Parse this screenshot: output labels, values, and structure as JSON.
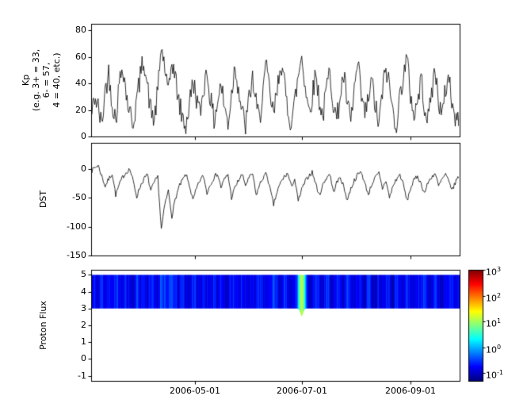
{
  "figure": {
    "background": "#ffffff"
  },
  "panels": {
    "kp": {
      "ylabel_lines": [
        "Kp",
        "(e.g. 3+ = 33,",
        "6- = 57,",
        "4 = 40, etc.)"
      ],
      "yticks": [
        "80",
        "60",
        "40",
        "20",
        "0"
      ]
    },
    "dst": {
      "ylabel": "DST",
      "yticks": [
        "0",
        "-50",
        "-100",
        "-150"
      ]
    },
    "flux": {
      "ylabel": "Proton Flux",
      "yticks": [
        "5",
        "4",
        "3",
        "2",
        "1",
        "0",
        "-1"
      ]
    }
  },
  "xaxis": {
    "ticks": [
      "2006-05-01",
      "2006-07-01",
      "2006-09-01"
    ]
  },
  "colorbar": {
    "ticks": [
      {
        "base": "10",
        "exp": "3"
      },
      {
        "base": "10",
        "exp": "2"
      },
      {
        "base": "10",
        "exp": "1"
      },
      {
        "base": "10",
        "exp": "0"
      },
      {
        "base": "10",
        "exp": "-1"
      }
    ]
  },
  "chart_data": [
    {
      "type": "line",
      "name": "Kp",
      "ylabel": "Kp (e.g. 3+ = 33, 6- = 57, 4 = 40, etc.)",
      "ylim": [
        0,
        85
      ],
      "yticks": [
        0,
        20,
        40,
        60,
        80
      ],
      "x_span_days": 210,
      "x_step_days": 2,
      "xticks": [
        {
          "label": "2006-05-01",
          "day": 59
        },
        {
          "label": "2006-07-01",
          "day": 120
        },
        {
          "label": "2006-09-01",
          "day": 182
        }
      ],
      "line_color": "#000000",
      "noise_amp": 9,
      "noise_seed": 42,
      "value_min": 0,
      "values": [
        14,
        30,
        22,
        8,
        35,
        48,
        26,
        12,
        40,
        55,
        32,
        18,
        10,
        28,
        45,
        60,
        38,
        20,
        12,
        34,
        68,
        52,
        30,
        58,
        44,
        26,
        14,
        8,
        24,
        42,
        30,
        16,
        36,
        50,
        28,
        12,
        26,
        40,
        22,
        10,
        32,
        55,
        36,
        18,
        8,
        28,
        44,
        24,
        12,
        38,
        52,
        30,
        16,
        34,
        58,
        40,
        22,
        10,
        26,
        45,
        62,
        38,
        20,
        30,
        48,
        28,
        14,
        35,
        50,
        26,
        12,
        32,
        46,
        24,
        10,
        36,
        54,
        30,
        16,
        28,
        42,
        22,
        8,
        34,
        52,
        38,
        18,
        10,
        30,
        48,
        58,
        32,
        16,
        26,
        44,
        24,
        12,
        34,
        50,
        28,
        14,
        36,
        46,
        22,
        10,
        18
      ]
    },
    {
      "type": "line",
      "name": "DST",
      "ylabel": "DST",
      "ylim": [
        -150,
        45
      ],
      "yticks": [
        0,
        -50,
        -100,
        -150
      ],
      "x_span_days": 210,
      "x_step_days": 2,
      "line_color": "#000000",
      "noise_amp": 4,
      "noise_seed": 7,
      "values": [
        -5,
        2,
        6,
        -12,
        -30,
        -18,
        -8,
        -45,
        -28,
        -14,
        -6,
        0,
        -22,
        -48,
        -30,
        -18,
        -10,
        -38,
        -24,
        -14,
        -105,
        -62,
        -38,
        -82,
        -52,
        -32,
        -20,
        -10,
        -28,
        -55,
        -35,
        -20,
        -12,
        -42,
        -26,
        -15,
        -8,
        -32,
        -18,
        -10,
        -50,
        -32,
        -20,
        -10,
        -28,
        -16,
        -8,
        -46,
        -28,
        -15,
        -8,
        -36,
        -62,
        -40,
        -24,
        -14,
        -8,
        -30,
        -18,
        -56,
        -36,
        -22,
        -12,
        -6,
        -26,
        -46,
        -28,
        -16,
        -8,
        -40,
        -24,
        -14,
        -32,
        -54,
        -34,
        -20,
        -10,
        -5,
        -26,
        -44,
        -26,
        -15,
        -8,
        -34,
        -20,
        -50,
        -30,
        -18,
        -10,
        -28,
        -56,
        -34,
        -20,
        -12,
        -26,
        -42,
        -24,
        -14,
        -8,
        -30,
        -18,
        -10,
        -24,
        -36,
        -20,
        -12
      ]
    },
    {
      "type": "heatmap",
      "name": "Proton Flux",
      "ylabel": "Proton Flux",
      "ylim": [
        -1.3,
        5.3
      ],
      "yticks": [
        -1,
        0,
        1,
        2,
        3,
        4,
        5
      ],
      "x_span_days": 210,
      "x_step_days": 2,
      "band_y": [
        3,
        5
      ],
      "colormap": "jet",
      "color_scale": "log10",
      "clim_log10": [
        -1.3,
        3
      ],
      "colorbar_tick_log10": [
        3,
        2,
        1,
        0,
        -1
      ],
      "colorbar_tick_values": [
        1000,
        100,
        10,
        1,
        0.1
      ],
      "noise_seed": 11,
      "event": {
        "day": 120,
        "peak_flux": 12,
        "width_days": 0.9,
        "dip_below_band": 0.45
      },
      "base_values": [
        0.12,
        0.2,
        0.1,
        0.28,
        0.15,
        0.22,
        0.1,
        0.32,
        0.18,
        0.12,
        0.25,
        0.14,
        0.1,
        0.3,
        0.16,
        0.22,
        0.12,
        0.28,
        0.15,
        0.1,
        0.45,
        0.3,
        0.18,
        0.35,
        0.2,
        0.12,
        0.26,
        0.14,
        0.1,
        0.3,
        0.17,
        0.11,
        0.24,
        0.15,
        0.1,
        0.28,
        0.16,
        0.22,
        0.12,
        0.1,
        0.3,
        0.18,
        0.12,
        0.26,
        0.14,
        0.1,
        0.22,
        0.13,
        0.28,
        0.16,
        0.1,
        0.24,
        0.35,
        0.2,
        0.12,
        0.28,
        0.15,
        0.1,
        0.22,
        0.3,
        0.5,
        0.25,
        0.14,
        0.1,
        0.26,
        0.16,
        0.1,
        0.3,
        0.18,
        0.12,
        0.24,
        0.14,
        0.1,
        0.32,
        0.18,
        0.12,
        0.26,
        0.15,
        0.1,
        0.28,
        0.16,
        0.1,
        0.22,
        0.13,
        0.3,
        0.17,
        0.11,
        0.25,
        0.14,
        0.1,
        0.28,
        0.16,
        0.1,
        0.24,
        0.14,
        0.32,
        0.18,
        0.12,
        0.26,
        0.15,
        0.1,
        0.22,
        0.3,
        0.17,
        0.12,
        0.2
      ]
    }
  ]
}
